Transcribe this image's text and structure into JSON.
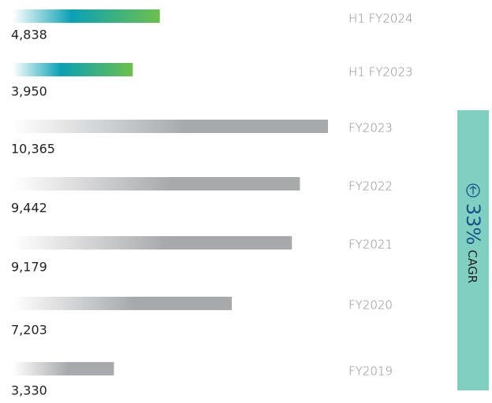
{
  "chart_data": {
    "type": "bar",
    "categories": [
      "H1 FY2024",
      "H1 FY2023",
      "FY2023",
      "FY2022",
      "FY2021",
      "FY2020",
      "FY2019"
    ],
    "values": [
      4838,
      3950,
      10365,
      9442,
      9179,
      7203,
      3330
    ],
    "value_labels": [
      "4,838",
      "3,950",
      "10,365",
      "9,442",
      "9,179",
      "7,203",
      "3,330"
    ],
    "colors": [
      "#6cc04a",
      "#6cc04a",
      "#a7a9ac",
      "#a7a9ac",
      "#a7a9ac",
      "#a7a9ac",
      "#a7a9ac"
    ],
    "annotation": {
      "value": "33%",
      "label": "CAGR",
      "color": "#7fd0c1"
    }
  }
}
